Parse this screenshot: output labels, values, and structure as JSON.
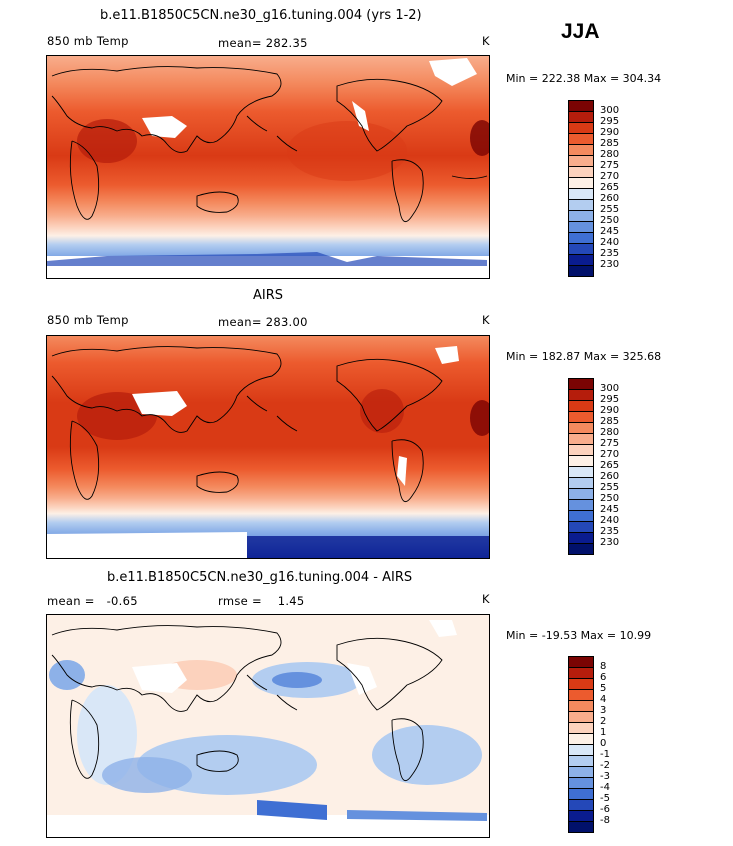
{
  "season": "JJA",
  "panels": [
    {
      "title": "b.e11.B1850C5CN.ne30_g16.tuning.004 (yrs 1-2)",
      "left_label": "850 mb Temp",
      "stat_text": "mean= 282.35",
      "units": "K",
      "minmax": "Min = 222.38 Max = 304.34",
      "mean": 282.35,
      "min": 222.38,
      "max": 304.34
    },
    {
      "title": "AIRS",
      "left_label": "850 mb Temp",
      "stat_text": "mean= 283.00",
      "units": "K",
      "minmax": "Min = 182.87 Max = 325.68",
      "mean": 283.0,
      "min": 182.87,
      "max": 325.68
    },
    {
      "title": "b.e11.B1850C5CN.ne30_g16.tuning.004 - AIRS",
      "left_label": "mean =   -0.65",
      "stat_text": "rmse =    1.45",
      "units": "K",
      "minmax": "Min = -19.53 Max =  10.99",
      "mean": -0.65,
      "rmse": 1.45,
      "min": -19.53,
      "max": 10.99
    }
  ],
  "colorbars": {
    "temperature": {
      "labels": [
        "300",
        "295",
        "290",
        "285",
        "280",
        "275",
        "270",
        "265",
        "260",
        "255",
        "250",
        "245",
        "240",
        "235",
        "230"
      ],
      "colors": [
        "#7a0403",
        "#b51d0c",
        "#d93a15",
        "#ec5b2e",
        "#f48a5e",
        "#f8ad8c",
        "#fcd2bd",
        "#fdf0e6",
        "#d9e7f7",
        "#b3cdf0",
        "#8db1e8",
        "#6591de",
        "#3f6fd3",
        "#2448b8",
        "#0a1c8f",
        "#01116b"
      ]
    },
    "difference": {
      "labels": [
        "8",
        "6",
        "5",
        "4",
        "3",
        "2",
        "1",
        "0",
        "-1",
        "-2",
        "-3",
        "-4",
        "-5",
        "-6",
        "-8"
      ],
      "colors": [
        "#7a0403",
        "#b51d0c",
        "#d93a15",
        "#ec5b2e",
        "#f48a5e",
        "#f8ad8c",
        "#fcd2bd",
        "#fdf0e6",
        "#d9e7f7",
        "#b3cdf0",
        "#8db1e8",
        "#6591de",
        "#3f6fd3",
        "#2448b8",
        "#0a1c8f",
        "#01116b"
      ]
    }
  }
}
